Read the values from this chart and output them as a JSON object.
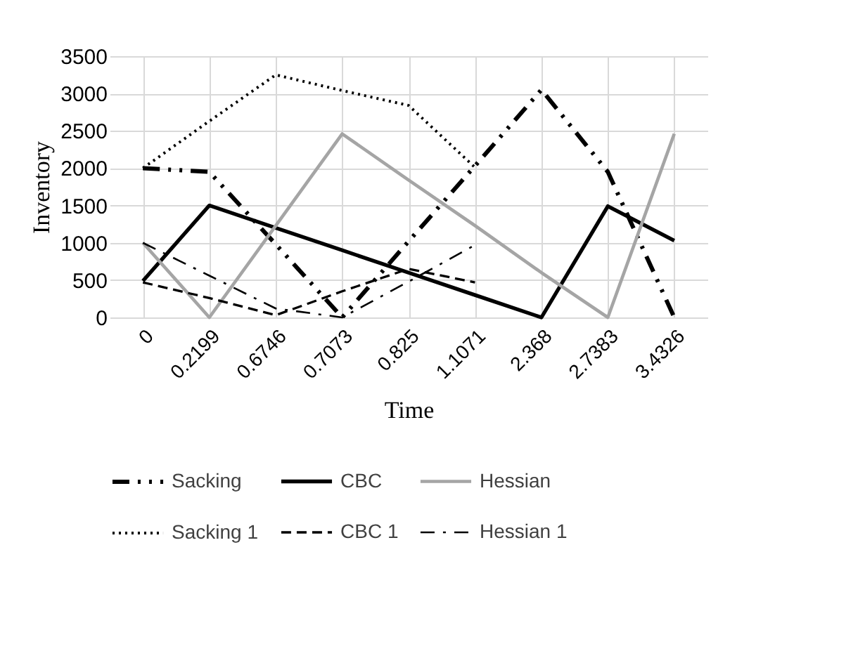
{
  "chart_data": {
    "type": "line",
    "xlabel": "Time",
    "ylabel": "Inventory",
    "categories": [
      "0",
      "0.2199",
      "0.6746",
      "0.7073",
      "0.825",
      "1.1071",
      "2.368",
      "2.7383",
      "3.4326"
    ],
    "ylim": [
      0,
      3500
    ],
    "yticks": [
      0,
      500,
      1000,
      1500,
      2000,
      2500,
      3000,
      3500
    ],
    "grid": true,
    "legend": "bottom",
    "marker": "none",
    "series": [
      {
        "name": "Sacking",
        "color": "#000000",
        "line_style": "dashdotdot",
        "values": [
          2000,
          1950,
          980,
          0,
          1020,
          2030,
          3050,
          1950,
          0
        ]
      },
      {
        "name": "CBC",
        "color": "#000000",
        "line_style": "solid",
        "values": [
          490,
          1500,
          1200,
          900,
          600,
          300,
          0,
          1490,
          1030
        ]
      },
      {
        "name": "Hessian",
        "color": "#a5a5a5",
        "line_style": "solid",
        "values": [
          1000,
          0,
          1230,
          2460,
          1840,
          1230,
          600,
          0,
          2460
        ]
      },
      {
        "name": "Sacking 1",
        "color": "#000000",
        "line_style": "dotted",
        "values": [
          2000,
          2630,
          3250,
          3040,
          2840,
          2010,
          null,
          null,
          null
        ]
      },
      {
        "name": "CBC 1",
        "color": "#000000",
        "line_style": "dashed",
        "values": [
          470,
          260,
          30,
          350,
          650,
          470,
          null,
          null,
          null
        ]
      },
      {
        "name": "Hessian 1",
        "color": "#000000",
        "line_style": "dashdot",
        "values": [
          1000,
          560,
          120,
          0,
          480,
          970,
          null,
          null,
          null
        ]
      }
    ]
  }
}
